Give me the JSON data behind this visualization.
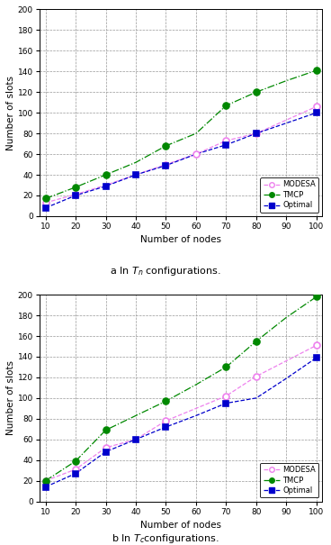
{
  "x_all": [
    10,
    20,
    30,
    40,
    50,
    60,
    70,
    80,
    90,
    100
  ],
  "plot_a": {
    "modesa_line": [
      13,
      21,
      30,
      40,
      50,
      60,
      73,
      80,
      93,
      106
    ],
    "modesa_marks_x": [
      10,
      20,
      50,
      60,
      70,
      80,
      100
    ],
    "modesa_marks_y": [
      13,
      21,
      50,
      60,
      73,
      80,
      106
    ],
    "tmcp_line": [
      17,
      28,
      40,
      52,
      68,
      80,
      107,
      120,
      131,
      141
    ],
    "tmcp_marks_x": [
      10,
      20,
      30,
      50,
      70,
      80,
      100
    ],
    "tmcp_marks_y": [
      17,
      28,
      40,
      68,
      107,
      120,
      141
    ],
    "optimal_line": [
      8,
      20,
      29,
      40,
      49,
      60,
      69,
      80,
      90,
      100
    ],
    "optimal_marks_x": [
      10,
      20,
      30,
      40,
      50,
      70,
      80,
      100
    ],
    "optimal_marks_y": [
      8,
      20,
      29,
      40,
      49,
      69,
      80,
      100
    ]
  },
  "plot_b": {
    "modesa_line": [
      20,
      31,
      52,
      60,
      78,
      90,
      102,
      121,
      136,
      151
    ],
    "modesa_marks_x": [
      10,
      20,
      30,
      50,
      70,
      80,
      100
    ],
    "modesa_marks_y": [
      20,
      31,
      52,
      78,
      102,
      121,
      151
    ],
    "tmcp_line": [
      20,
      39,
      69,
      83,
      97,
      113,
      130,
      155,
      178,
      198
    ],
    "tmcp_marks_x": [
      10,
      20,
      30,
      50,
      70,
      80,
      100
    ],
    "tmcp_marks_y": [
      20,
      39,
      69,
      97,
      130,
      155,
      198
    ],
    "optimal_line": [
      14,
      27,
      48,
      60,
      72,
      83,
      95,
      100,
      119,
      139
    ],
    "optimal_marks_x": [
      10,
      20,
      30,
      40,
      50,
      70,
      100
    ],
    "optimal_marks_y": [
      14,
      27,
      48,
      60,
      72,
      95,
      139
    ]
  },
  "modesa_color": "#ee82ee",
  "tmcp_color": "#008800",
  "optimal_color": "#0000cc",
  "xlabel": "Number of nodes",
  "ylabel": "Number of slots",
  "ylim": [
    0,
    200
  ],
  "xticks": [
    10,
    20,
    30,
    40,
    50,
    60,
    70,
    80,
    90,
    100
  ],
  "yticks": [
    0,
    20,
    40,
    60,
    80,
    100,
    120,
    140,
    160,
    180,
    200
  ],
  "caption_a": "a In $T_n$ configurations.",
  "caption_b": "b In $T_c$configurations."
}
